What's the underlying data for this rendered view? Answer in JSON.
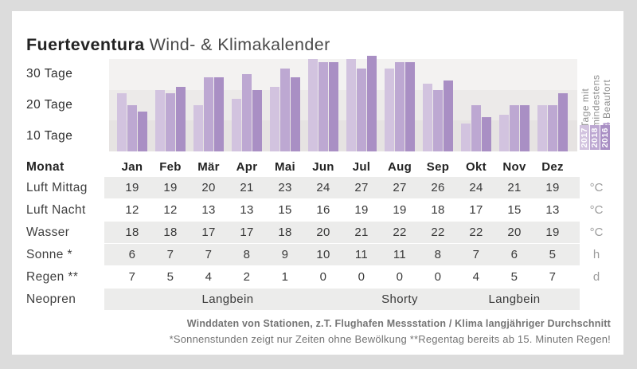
{
  "title": {
    "brand": "Fuerteventura",
    "rest": "Wind- & Klimakalender"
  },
  "chart_data": {
    "type": "bar",
    "title": "Tage mit mindestens 4 Beaufort",
    "categories": [
      "Jan",
      "Feb",
      "Mär",
      "Apr",
      "Mai",
      "Jun",
      "Jul",
      "Aug",
      "Sep",
      "Okt",
      "Nov",
      "Dez"
    ],
    "series": [
      {
        "name": "2017",
        "color": "#d2c3df",
        "values": [
          19,
          20,
          15,
          17,
          21,
          30,
          30,
          27,
          22,
          9,
          12,
          15
        ]
      },
      {
        "name": "2018",
        "color": "#bda8d2",
        "values": [
          15,
          19,
          24,
          25,
          27,
          29,
          27,
          29,
          20,
          15,
          15,
          15
        ]
      },
      {
        "name": "2016",
        "color": "#a98fc4",
        "values": [
          13,
          21,
          24,
          20,
          24,
          29,
          31,
          29,
          23,
          11,
          15,
          19
        ]
      }
    ],
    "y_tick_labels": [
      "30 Tage",
      "20 Tage",
      "10 Tage"
    ],
    "ylim": [
      0,
      33
    ],
    "grid": "banded",
    "legend_position": "right-rotated",
    "legend": {
      "line1": "Tage mit",
      "line2": "mindestens",
      "num": "4",
      "line3": "Beaufort"
    }
  },
  "table": {
    "month_header_label": "Monat",
    "months": [
      "Jan",
      "Feb",
      "Mär",
      "Apr",
      "Mai",
      "Jun",
      "Jul",
      "Aug",
      "Sep",
      "Okt",
      "Nov",
      "Dez"
    ],
    "rows": [
      {
        "label": "Luft Mittag",
        "unit": "°C",
        "striped": true,
        "values": [
          19,
          19,
          20,
          21,
          23,
          24,
          27,
          27,
          26,
          24,
          21,
          19
        ]
      },
      {
        "label": "Luft Nacht",
        "unit": "°C",
        "striped": false,
        "values": [
          12,
          12,
          13,
          13,
          15,
          16,
          19,
          19,
          18,
          17,
          15,
          13
        ]
      },
      {
        "label": "Wasser",
        "unit": "°C",
        "striped": true,
        "values": [
          18,
          18,
          17,
          17,
          18,
          20,
          21,
          22,
          22,
          22,
          20,
          19
        ]
      },
      {
        "label": "Sonne *",
        "unit": "h",
        "striped": true,
        "values": [
          6,
          7,
          7,
          8,
          9,
          10,
          11,
          11,
          8,
          7,
          6,
          5
        ]
      },
      {
        "label": "Regen **",
        "unit": "d",
        "striped": false,
        "values": [
          7,
          5,
          4,
          2,
          1,
          0,
          0,
          0,
          0,
          4,
          5,
          7
        ]
      },
      {
        "label": "Neopren",
        "unit": "",
        "striped": true,
        "spans": [
          {
            "label": "Langbein",
            "cols": 6
          },
          {
            "label": "Shorty",
            "cols": 3
          },
          {
            "label": "Langbein",
            "cols": 3
          }
        ]
      }
    ]
  },
  "footer": {
    "line1": "Winddaten von Stationen, z.T. Flughafen Messstation / Klima langjähriger Durchschnitt",
    "line2": "*Sonnenstunden zeigt nur Zeiten ohne Bewölkung  **Regentag bereits ab 15. Minuten Regen!"
  },
  "colors": {
    "page_bg": "#dcdcdc",
    "card_bg": "#ffffff",
    "accent_purple": "#a98fc4",
    "stripe": "#ececeb",
    "bands": [
      "#e6e3e2",
      "#eceae9",
      "#f3f2f1"
    ]
  }
}
